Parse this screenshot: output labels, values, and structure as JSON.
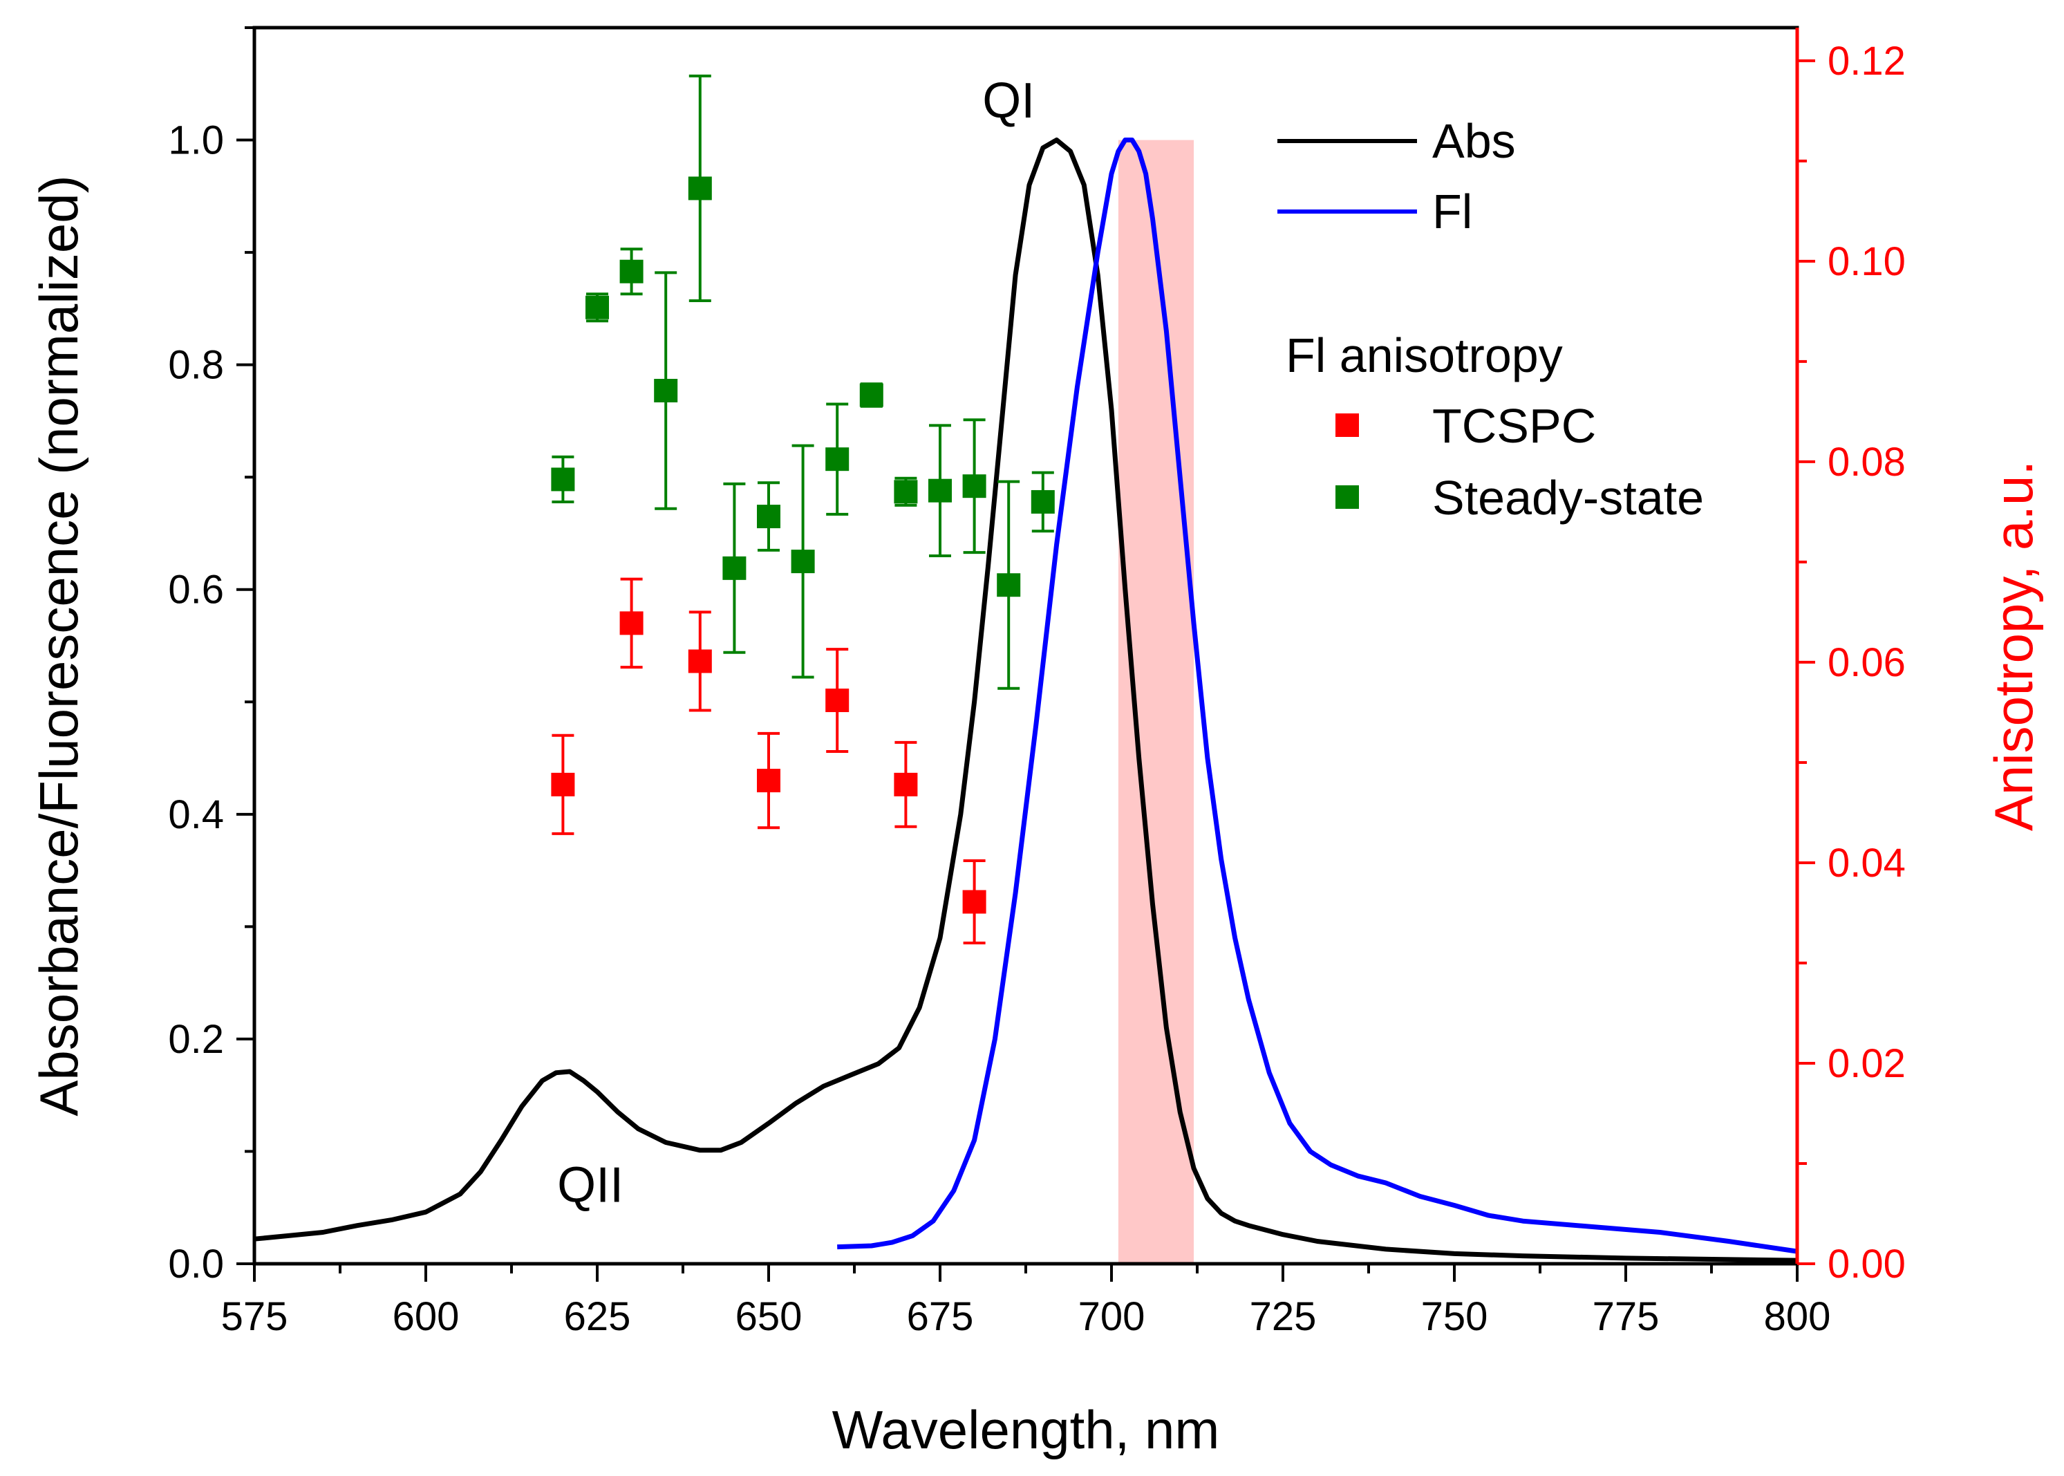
{
  "chart_data": {
    "type": "line",
    "title": "",
    "xlabel": "Wavelength, nm",
    "ylabel": "Absorbance/Fluorescence (normalized)",
    "y2label": "Anisotropy, a.u.",
    "xlim": [
      575,
      800
    ],
    "ylim": [
      0,
      1.1
    ],
    "y2lim": [
      0,
      0.1233
    ],
    "xticks": [
      575,
      600,
      625,
      650,
      675,
      700,
      725,
      750,
      775,
      800
    ],
    "xtick_labels": [
      "575",
      "600",
      "625",
      "650",
      "675",
      "700",
      "725",
      "750",
      "775",
      "800"
    ],
    "yticks": [
      0.0,
      0.2,
      0.4,
      0.6,
      0.8,
      1.0
    ],
    "ytick_labels": [
      "0.0",
      "0.2",
      "0.4",
      "0.6",
      "0.8",
      "1.0"
    ],
    "y2ticks": [
      0.0,
      0.02,
      0.04,
      0.06,
      0.08,
      0.1,
      0.12
    ],
    "y2tick_labels": [
      "0.00",
      "0.02",
      "0.04",
      "0.06",
      "0.08",
      "0.10",
      "0.12"
    ],
    "grid": false,
    "legend_position": "top-right",
    "shaded_band": {
      "x_range": [
        701,
        712
      ],
      "y_range": [
        0,
        1.0
      ],
      "color": "#ffc8c8"
    },
    "annotations": [
      {
        "text": "QI",
        "x": 685,
        "y": 1.02
      },
      {
        "text": "QII",
        "x": 624,
        "y": 0.055
      }
    ],
    "legend_header": "Fl anisotropy",
    "series": [
      {
        "name": "Abs",
        "kind": "line",
        "axis": "left",
        "color": "#000000",
        "x": [
          575,
          580,
          585,
          590,
          595,
          600,
          605,
          608,
          611,
          614,
          617,
          619,
          621,
          623,
          625,
          628,
          631,
          635,
          640,
          643,
          646,
          650,
          654,
          658,
          662,
          666,
          669,
          672,
          675,
          678,
          680,
          682,
          684,
          686,
          688,
          690,
          692,
          694,
          696,
          698,
          700,
          702,
          704,
          706,
          708,
          710,
          712,
          714,
          716,
          718,
          720,
          725,
          730,
          740,
          750,
          760,
          775,
          800
        ],
        "y": [
          0.022,
          0.025,
          0.028,
          0.034,
          0.039,
          0.046,
          0.062,
          0.082,
          0.11,
          0.14,
          0.163,
          0.17,
          0.171,
          0.163,
          0.153,
          0.135,
          0.12,
          0.108,
          0.101,
          0.101,
          0.108,
          0.125,
          0.143,
          0.158,
          0.168,
          0.178,
          0.192,
          0.228,
          0.29,
          0.4,
          0.5,
          0.62,
          0.75,
          0.88,
          0.96,
          0.993,
          1.0,
          0.99,
          0.96,
          0.88,
          0.76,
          0.6,
          0.45,
          0.32,
          0.21,
          0.135,
          0.085,
          0.058,
          0.045,
          0.038,
          0.034,
          0.026,
          0.02,
          0.013,
          0.009,
          0.007,
          0.005,
          0.003
        ]
      },
      {
        "name": "Fl",
        "kind": "line",
        "axis": "left",
        "color": "#0000ff",
        "x": [
          660,
          665,
          668,
          671,
          674,
          677,
          680,
          683,
          686,
          689,
          692,
          695,
          698,
          700,
          701,
          702,
          703,
          704,
          705,
          706,
          708,
          710,
          712,
          714,
          716,
          718,
          720,
          723,
          726,
          729,
          732,
          736,
          740,
          745,
          750,
          755,
          760,
          770,
          780,
          790,
          800
        ],
        "y": [
          0.015,
          0.016,
          0.019,
          0.025,
          0.038,
          0.065,
          0.11,
          0.2,
          0.33,
          0.48,
          0.64,
          0.78,
          0.9,
          0.97,
          0.99,
          1.0,
          1.0,
          0.99,
          0.97,
          0.93,
          0.83,
          0.7,
          0.57,
          0.45,
          0.36,
          0.29,
          0.235,
          0.17,
          0.125,
          0.1,
          0.088,
          0.078,
          0.072,
          0.06,
          0.052,
          0.043,
          0.038,
          0.033,
          0.028,
          0.02,
          0.011
        ]
      },
      {
        "name": "TCSPC",
        "kind": "scatter_errorbar",
        "axis": "right",
        "color": "#ff0000",
        "x": [
          620,
          630,
          640,
          650,
          660,
          670,
          680
        ],
        "y": [
          0.0478,
          0.0639,
          0.0601,
          0.0482,
          0.0562,
          0.0478,
          0.0361
        ],
        "err": [
          0.0049,
          0.0044,
          0.0049,
          0.0047,
          0.0051,
          0.0042,
          0.0041
        ]
      },
      {
        "name": "Steady-state",
        "kind": "scatter_errorbar",
        "axis": "left",
        "color": "#008000",
        "x": [
          620,
          625,
          630,
          635,
          640,
          645,
          650,
          655,
          660,
          665,
          670,
          675,
          680,
          685,
          690
        ],
        "y": [
          0.698,
          0.851,
          0.883,
          0.777,
          0.957,
          0.619,
          0.665,
          0.625,
          0.716,
          0.773,
          0.687,
          0.688,
          0.692,
          0.604,
          0.678
        ],
        "err": [
          0.02,
          0.012,
          0.02,
          0.105,
          0.1,
          0.075,
          0.03,
          0.103,
          0.049,
          0.01,
          0.012,
          0.058,
          0.059,
          0.092,
          0.026
        ]
      }
    ]
  }
}
